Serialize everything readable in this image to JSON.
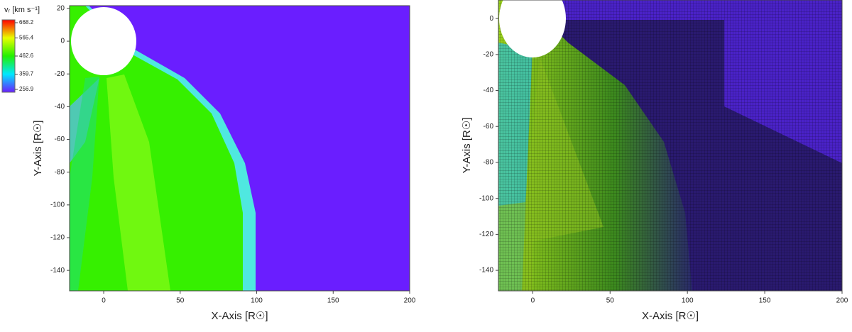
{
  "chart_data": [
    {
      "type": "field",
      "xlabel": "X-Axis [R☉]",
      "ylabel": "Y-Axis [R☉]",
      "xlim": [
        -22.3,
        200
      ],
      "ylim": [
        -152.5,
        21.7
      ],
      "xticks": [
        0,
        50,
        100,
        150,
        200
      ],
      "yticks": [
        20,
        0,
        -20,
        -40,
        -60,
        -80,
        -100,
        -120,
        -140
      ],
      "colorbar": {
        "label": "vᵣ [km s⁻¹]",
        "lim": [
          256.9,
          668.2
        ],
        "ticks": [
          668.2,
          565.4,
          462.6,
          359.7,
          256.9
        ],
        "colors": [
          "#6a1eff",
          "#00e8ff",
          "#22f000",
          "#e8ff00",
          "#ff0000"
        ]
      }
    },
    {
      "type": "field",
      "xlabel": "X-Axis [R☉]",
      "ylabel": "Y-Axis [R☉]",
      "xlim": [
        -22.2,
        200
      ],
      "ylim": [
        -151.4,
        10.3
      ],
      "xticks": [
        0,
        50,
        100,
        150,
        200
      ],
      "yticks": [
        0,
        -20,
        -40,
        -60,
        -80,
        -100,
        -120,
        -140
      ]
    }
  ]
}
